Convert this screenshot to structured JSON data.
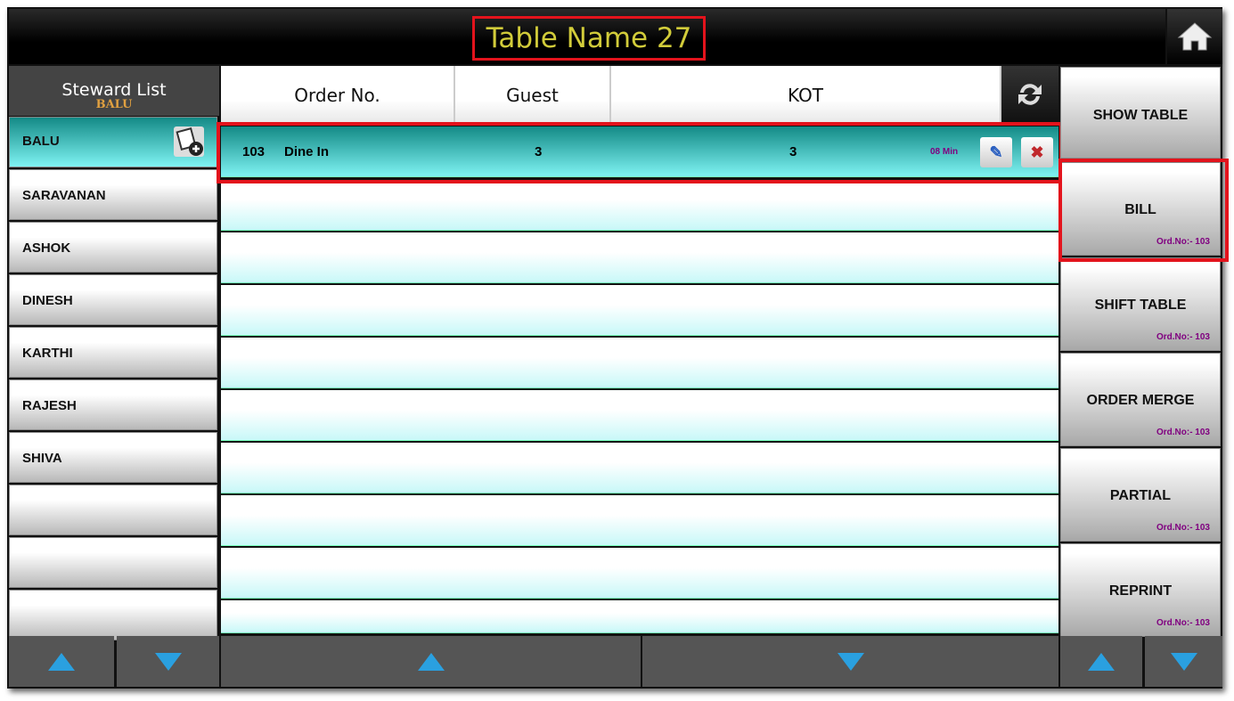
{
  "header": {
    "title": "Table Name 27",
    "home_icon": "home-icon"
  },
  "steward": {
    "title": "Steward List",
    "selected": "BALU",
    "items": [
      "BALU",
      "SARAVANAN",
      "ASHOK",
      "DINESH",
      "KARTHI",
      "RAJESH",
      "SHIVA",
      "",
      "",
      ""
    ]
  },
  "orders": {
    "columns": [
      "Order No.",
      "Guest",
      "KOT"
    ],
    "rows": [
      {
        "order_no": "103",
        "type": "Dine In",
        "guest": "3",
        "kot": "3",
        "time": "08 Min"
      }
    ]
  },
  "actions": [
    {
      "label": "SHOW TABLE",
      "ord": ""
    },
    {
      "label": "BILL",
      "ord": "Ord.No:- 103"
    },
    {
      "label": "SHIFT TABLE",
      "ord": "Ord.No:- 103"
    },
    {
      "label": "ORDER MERGE",
      "ord": "Ord.No:- 103"
    },
    {
      "label": "PARTIAL",
      "ord": "Ord.No:- 103"
    },
    {
      "label": "REPRINT",
      "ord": "Ord.No:- 103"
    }
  ],
  "colors": {
    "accent_teal": "#138a86",
    "highlight_red": "#e3131c",
    "title_yellow": "#d2cc3a",
    "ord_purple": "#800080"
  }
}
